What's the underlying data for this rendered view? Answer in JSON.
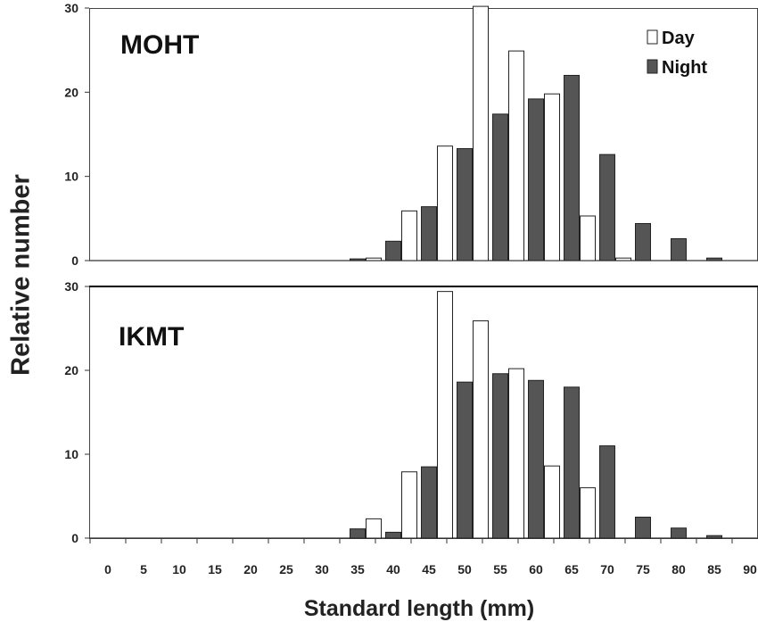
{
  "figure": {
    "ylabel": "Relative number",
    "xlabel": "Standard length (mm)"
  },
  "chart_data": [
    {
      "type": "bar",
      "title": "MOHT",
      "categories": [
        "0",
        "5",
        "10",
        "15",
        "20",
        "25",
        "30",
        "35",
        "40",
        "45",
        "50",
        "55",
        "60",
        "65",
        "70",
        "75",
        "80",
        "85",
        "90"
      ],
      "series": [
        {
          "name": "Day",
          "color": "#ffffff",
          "values": [
            0,
            0,
            0,
            0,
            0,
            0,
            0,
            0,
            0.3,
            5.9,
            13.6,
            30.2,
            24.9,
            19.8,
            5.3,
            0.3,
            0,
            0,
            0
          ]
        },
        {
          "name": "Night",
          "color": "#555555",
          "values": [
            0,
            0,
            0,
            0,
            0,
            0,
            0,
            0.2,
            2.3,
            6.4,
            13.3,
            17.4,
            19.2,
            22.0,
            12.6,
            4.4,
            2.6,
            0.3,
            0
          ]
        }
      ],
      "xlabel": "Standard length (mm)",
      "ylabel": "Relative number",
      "ylim": [
        0,
        30
      ],
      "yticks": [
        0,
        10,
        20,
        30
      ],
      "legend": "top-right",
      "grid": false
    },
    {
      "type": "bar",
      "title": "IKMT",
      "categories": [
        "0",
        "5",
        "10",
        "15",
        "20",
        "25",
        "30",
        "35",
        "40",
        "45",
        "50",
        "55",
        "60",
        "65",
        "70",
        "75",
        "80",
        "85",
        "90"
      ],
      "series": [
        {
          "name": "Day",
          "color": "#ffffff",
          "values": [
            0,
            0,
            0,
            0,
            0,
            0,
            0,
            0,
            2.3,
            7.9,
            29.4,
            25.9,
            20.2,
            8.6,
            6.0,
            0,
            0,
            0,
            0
          ]
        },
        {
          "name": "Night",
          "color": "#555555",
          "values": [
            0,
            0,
            0,
            0,
            0,
            0,
            0,
            1.1,
            0.7,
            8.5,
            18.6,
            19.6,
            18.8,
            18.0,
            11.0,
            2.5,
            1.2,
            0.3,
            0
          ]
        }
      ],
      "xlabel": "Standard length (mm)",
      "ylabel": "Relative number",
      "ylim": [
        0,
        30
      ],
      "yticks": [
        0,
        10,
        20,
        30
      ],
      "legend": "none",
      "grid": false
    }
  ]
}
